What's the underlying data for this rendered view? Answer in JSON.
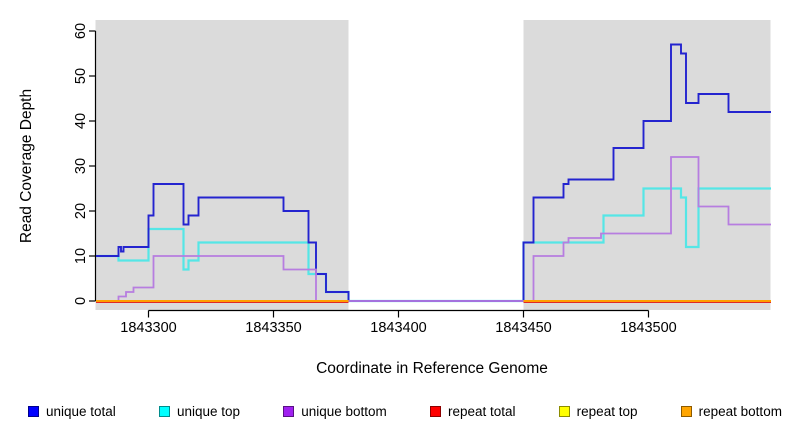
{
  "chart_data": {
    "type": "line",
    "subtype": "step",
    "title": "",
    "xlabel": "Coordinate in Reference Genome",
    "ylabel": "Read Coverage Depth",
    "xlim": [
      1843278.8,
      1843548.8
    ],
    "ylim": [
      0,
      60
    ],
    "x_ticks": [
      1843300,
      1843350,
      1843400,
      1843450,
      1843500
    ],
    "y_ticks": [
      0,
      10,
      20,
      30,
      40,
      50,
      60
    ],
    "grid": "off",
    "plot_background": "#ffffff",
    "shaded_regions": [
      {
        "x0": 1843278.8,
        "x1": 1843380,
        "color": "#dbdbdb"
      },
      {
        "x0": 1843450,
        "x1": 1843548.8,
        "color": "#dbdbdb"
      }
    ],
    "series": [
      {
        "name": "unique top",
        "line_color": "#55e6e6",
        "width": 2.2,
        "dy": 0,
        "segments": [
          [
            [
              1843279,
              10
            ],
            [
              1843288,
              9
            ],
            [
              1843300,
              16
            ],
            [
              1843314,
              7
            ],
            [
              1843316,
              9
            ],
            [
              1843320,
              13
            ],
            [
              1843364,
              6
            ],
            [
              1843371,
              2
            ],
            [
              1843380,
              0
            ],
            [
              1843450,
              13
            ],
            [
              1843482,
              19
            ],
            [
              1843498,
              25
            ],
            [
              1843513,
              23
            ],
            [
              1843515,
              12
            ],
            [
              1843520,
              25
            ],
            [
              1843549,
              25
            ]
          ]
        ]
      },
      {
        "name": "unique total",
        "line_color": "#2424cf",
        "width": 1.9,
        "dy": 0,
        "segments": [
          [
            [
              1843279,
              10
            ],
            [
              1843288,
              12
            ],
            [
              1843289,
              11
            ],
            [
              1843290,
              12
            ],
            [
              1843300,
              19
            ],
            [
              1843302,
              26
            ],
            [
              1843314,
              17
            ],
            [
              1843316,
              19
            ],
            [
              1843320,
              23
            ],
            [
              1843354,
              20
            ],
            [
              1843364,
              13
            ],
            [
              1843367,
              6
            ],
            [
              1843371,
              2
            ],
            [
              1843380,
              0
            ],
            [
              1843450,
              13
            ],
            [
              1843454,
              23
            ],
            [
              1843466,
              26
            ],
            [
              1843468,
              27
            ],
            [
              1843486,
              34
            ],
            [
              1843498,
              40
            ],
            [
              1843509,
              57
            ],
            [
              1843513,
              55
            ],
            [
              1843515,
              44
            ],
            [
              1843520,
              46
            ],
            [
              1843532,
              42
            ],
            [
              1843549,
              42
            ]
          ]
        ]
      },
      {
        "name": "unique bottom",
        "line_color": "#b77de0",
        "width": 1.8,
        "dy": 0,
        "segments": [
          [
            [
              1843279,
              0
            ],
            [
              1843288,
              1
            ],
            [
              1843291,
              2
            ],
            [
              1843294,
              3
            ],
            [
              1843302,
              10
            ],
            [
              1843354,
              7
            ],
            [
              1843367,
              0
            ],
            [
              1843454,
              10
            ],
            [
              1843466,
              13
            ],
            [
              1843468,
              14
            ],
            [
              1843481,
              15
            ],
            [
              1843509,
              32
            ],
            [
              1843520,
              21
            ],
            [
              1843532,
              17
            ],
            [
              1843549,
              17
            ]
          ]
        ]
      },
      {
        "name": "repeat total",
        "line_color": "#e02828",
        "width": 2,
        "dy": 1,
        "segments": [
          [
            [
              1843279,
              0
            ],
            [
              1843380,
              0
            ]
          ],
          [
            [
              1843450,
              0
            ],
            [
              1843549,
              0
            ]
          ]
        ]
      },
      {
        "name": "repeat top",
        "line_color": "#f5e400",
        "width": 2,
        "dy": 0,
        "segments": [
          [
            [
              1843279,
              0
            ],
            [
              1843380,
              0
            ]
          ],
          [
            [
              1843450,
              0
            ],
            [
              1843549,
              0
            ]
          ]
        ]
      },
      {
        "name": "repeat bottom",
        "line_color": "#ff9e00",
        "width": 2,
        "dy": 0,
        "segments": [
          [
            [
              1843279,
              0
            ],
            [
              1843380,
              0
            ]
          ],
          [
            [
              1843450,
              0
            ],
            [
              1843549,
              0
            ]
          ]
        ]
      }
    ],
    "legend": {
      "position": "bottom",
      "items": [
        {
          "label": "unique total",
          "color": "#0000FF"
        },
        {
          "label": "unique top",
          "color": "#00FFFF"
        },
        {
          "label": "unique bottom",
          "color": "#A020F0"
        },
        {
          "label": "repeat total",
          "color": "#FF0000"
        },
        {
          "label": "repeat top",
          "color": "#FFFF00"
        },
        {
          "label": "repeat bottom",
          "color": "#FFA500"
        }
      ]
    }
  }
}
